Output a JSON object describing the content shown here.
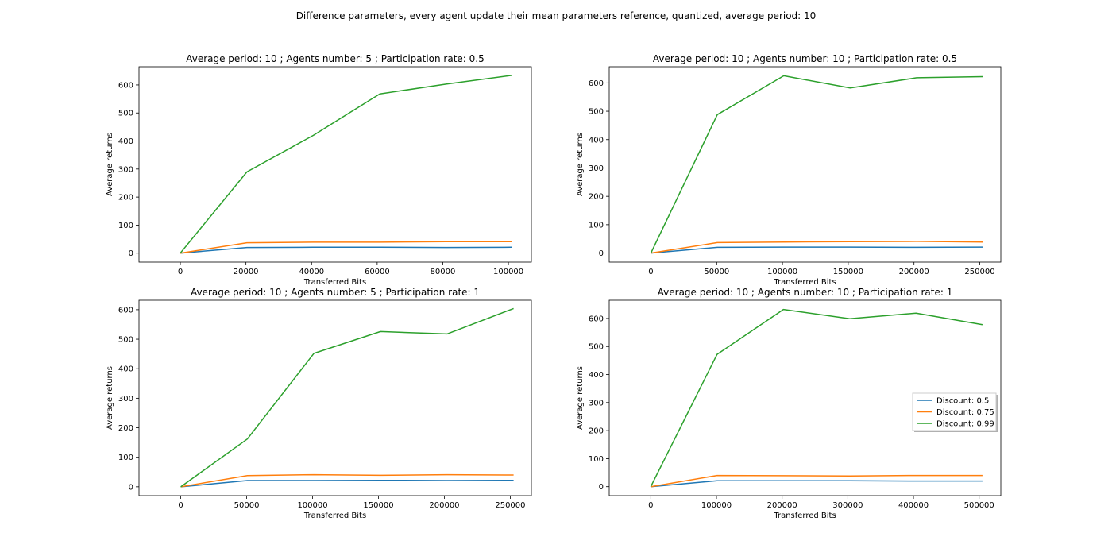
{
  "figure": {
    "suptitle": "Difference parameters, every agent update their mean parameters reference, quantized, average period: 10"
  },
  "legend": {
    "entries": [
      "Discount: 0.5",
      "Discount: 0.75",
      "Discount: 0.99"
    ],
    "colors": [
      "#1f77b4",
      "#ff7f0e",
      "#2ca02c"
    ],
    "placement": "center-right of bottom-right subplot"
  },
  "chart_data": [
    {
      "type": "line",
      "title": "Average period: 10 ; Agents number: 5 ; Participation rate: 0.5",
      "xlabel": "Transferred Bits",
      "ylabel": "Average returns",
      "xlim": [
        -12600,
        107000
      ],
      "ylim": [
        -32,
        665
      ],
      "xticks": [
        0,
        20000,
        40000,
        60000,
        80000,
        100000
      ],
      "yticks": [
        0,
        100,
        200,
        300,
        400,
        500,
        600
      ],
      "x": [
        0,
        20300,
        40500,
        60800,
        81000,
        101000
      ],
      "series": [
        {
          "name": "Discount: 0.5",
          "color": "#1f77b4",
          "values": [
            0,
            20,
            21,
            21,
            20,
            21
          ]
        },
        {
          "name": "Discount: 0.75",
          "color": "#ff7f0e",
          "values": [
            0,
            37,
            39,
            39,
            41,
            41
          ]
        },
        {
          "name": "Discount: 0.99",
          "color": "#2ca02c",
          "values": [
            0,
            290,
            420,
            568,
            603,
            634
          ]
        }
      ]
    },
    {
      "type": "line",
      "title": "Average period: 10 ; Agents number: 10 ; Participation rate: 0.5",
      "xlabel": "Transferred Bits",
      "ylabel": "Average returns",
      "xlim": [
        -31700,
        266000
      ],
      "ylim": [
        -32,
        657
      ],
      "xticks": [
        0,
        50000,
        100000,
        150000,
        200000,
        250000
      ],
      "yticks": [
        0,
        100,
        200,
        300,
        400,
        500,
        600
      ],
      "x": [
        0,
        50500,
        101000,
        151500,
        202000,
        252500
      ],
      "series": [
        {
          "name": "Discount: 0.5",
          "color": "#1f77b4",
          "values": [
            0,
            20,
            21,
            21,
            20,
            21
          ]
        },
        {
          "name": "Discount: 0.75",
          "color": "#ff7f0e",
          "values": [
            0,
            37,
            39,
            40,
            41,
            39
          ]
        },
        {
          "name": "Discount: 0.99",
          "color": "#2ca02c",
          "values": [
            0,
            488,
            625,
            582,
            618,
            622
          ]
        }
      ]
    },
    {
      "type": "line",
      "title": "Average period: 10 ; Agents number: 5 ; Participation rate: 1",
      "xlabel": "Transferred Bits",
      "ylabel": "Average returns",
      "xlim": [
        -31700,
        266000
      ],
      "ylim": [
        -30,
        632
      ],
      "xticks": [
        0,
        50000,
        100000,
        150000,
        200000,
        250000
      ],
      "yticks": [
        0,
        100,
        200,
        300,
        400,
        500,
        600
      ],
      "x": [
        0,
        50500,
        101000,
        151500,
        202000,
        252500
      ],
      "series": [
        {
          "name": "Discount: 0.5",
          "color": "#1f77b4",
          "values": [
            0,
            21,
            21,
            22,
            21,
            22
          ]
        },
        {
          "name": "Discount: 0.75",
          "color": "#ff7f0e",
          "values": [
            0,
            38,
            41,
            39,
            41,
            40
          ]
        },
        {
          "name": "Discount: 0.99",
          "color": "#2ca02c",
          "values": [
            0,
            162,
            452,
            526,
            518,
            604
          ]
        }
      ]
    },
    {
      "type": "line",
      "title": "Average period: 10 ; Agents number: 10 ; Participation rate: 1",
      "xlabel": "Transferred Bits",
      "ylabel": "Average returns",
      "xlim": [
        -63300,
        533000
      ],
      "ylim": [
        -32,
        665
      ],
      "xticks": [
        0,
        100000,
        200000,
        300000,
        400000,
        500000
      ],
      "yticks": [
        0,
        100,
        200,
        300,
        400,
        500,
        600
      ],
      "x": [
        0,
        101000,
        202000,
        303000,
        404000,
        505000
      ],
      "series": [
        {
          "name": "Discount: 0.5",
          "color": "#1f77b4",
          "values": [
            0,
            21,
            21,
            21,
            20,
            20
          ]
        },
        {
          "name": "Discount: 0.75",
          "color": "#ff7f0e",
          "values": [
            0,
            40,
            39,
            38,
            40,
            40
          ]
        },
        {
          "name": "Discount: 0.99",
          "color": "#2ca02c",
          "values": [
            0,
            472,
            632,
            599,
            619,
            578
          ]
        }
      ]
    }
  ]
}
